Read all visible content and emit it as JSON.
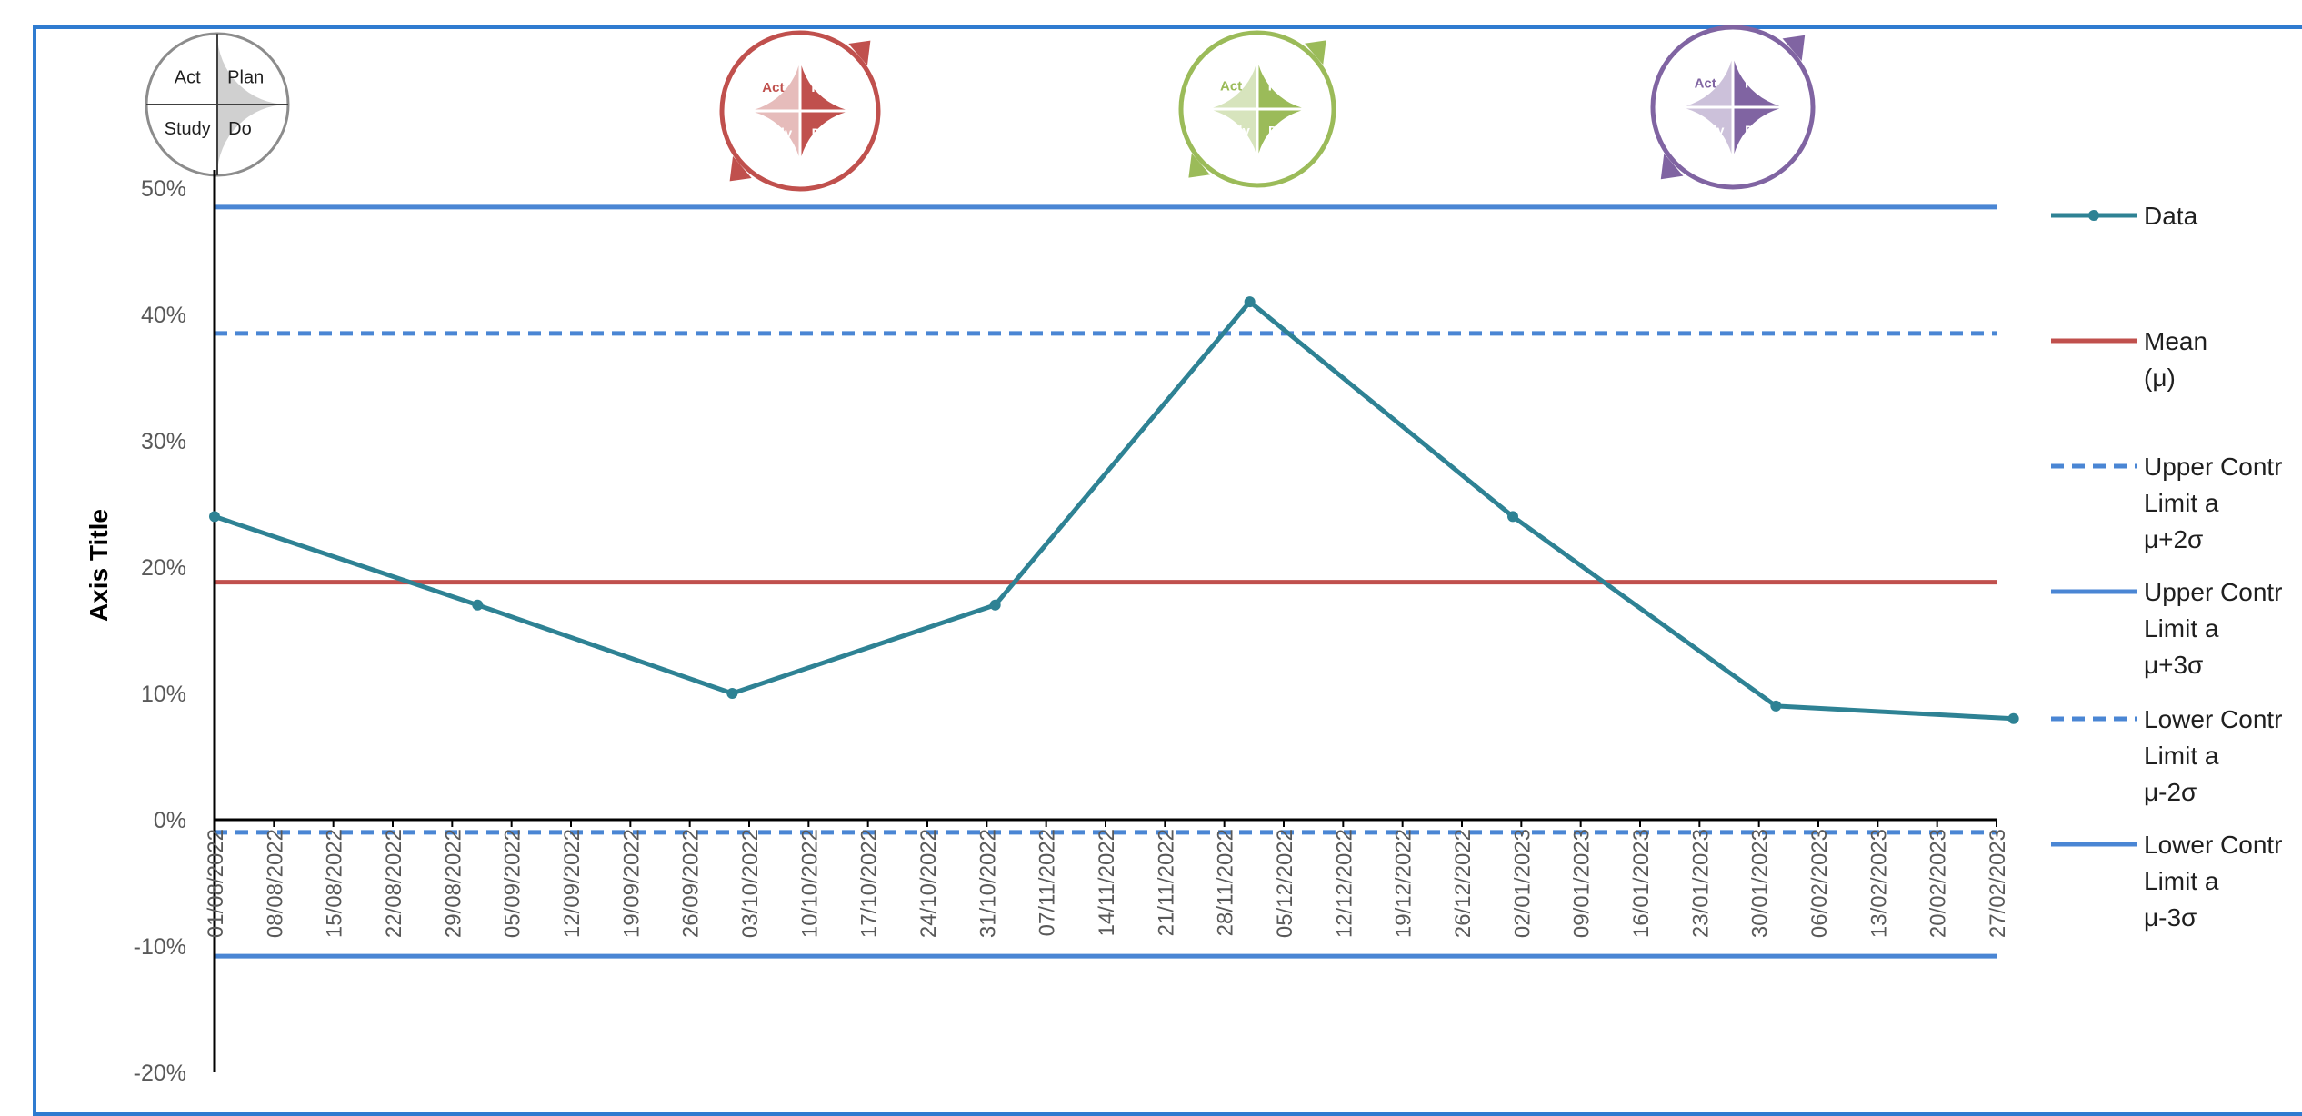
{
  "colors": {
    "data": "#2e8294",
    "mean": "#c0504d",
    "limits": "#4a86d4",
    "frame": "#2f7bd0"
  },
  "pdsa_cycles": [
    {
      "act": "Act",
      "plan": "Plan",
      "study": "Study",
      "do": "Do",
      "color_light": "#ffffff",
      "color_dark": "#d0d0d0",
      "ring": "#8c8c8c",
      "ring_style": "plain"
    },
    {
      "act": "Act",
      "plan": "Plan",
      "study": "Study",
      "do": "Do",
      "color_light": "#e6bcbb",
      "color_dark": "#c0504d",
      "ring": "#c0504d",
      "ring_style": "arrow"
    },
    {
      "act": "Act",
      "plan": "Plan",
      "study": "Study",
      "do": "Do",
      "color_light": "#d7e4bd",
      "color_dark": "#9bbb59",
      "ring": "#9bbb59",
      "ring_style": "arrow"
    },
    {
      "act": "Act",
      "plan": "Plan",
      "study": "Study",
      "do": "Do",
      "color_light": "#ccc1da",
      "color_dark": "#8064a2",
      "ring": "#8064a2",
      "ring_style": "arrow"
    }
  ],
  "chart_data": {
    "type": "line",
    "title": "",
    "xlabel": "",
    "ylabel": "Axis Title",
    "ylim": [
      -0.2,
      0.5
    ],
    "yticks": [
      {
        "value": 0.5,
        "label": "50%"
      },
      {
        "value": 0.4,
        "label": "40%"
      },
      {
        "value": 0.3,
        "label": "30%"
      },
      {
        "value": 0.2,
        "label": "20%"
      },
      {
        "value": 0.1,
        "label": "10%"
      },
      {
        "value": 0.0,
        "label": "0%"
      },
      {
        "value": -0.1,
        "label": "-10%"
      },
      {
        "value": -0.2,
        "label": "-20%"
      }
    ],
    "x_tick_labels": [
      "01/08/2022",
      "08/08/2022",
      "15/08/2022",
      "22/08/2022",
      "29/08/2022",
      "05/09/2022",
      "12/09/2022",
      "19/09/2022",
      "26/09/2022",
      "03/10/2022",
      "10/10/2022",
      "17/10/2022",
      "24/10/2022",
      "31/10/2022",
      "07/11/2022",
      "14/11/2022",
      "21/11/2022",
      "28/11/2022",
      "05/12/2022",
      "12/12/2022",
      "19/12/2022",
      "26/12/2022",
      "02/01/2023",
      "09/01/2023",
      "16/01/2023",
      "23/01/2023",
      "30/01/2023",
      "06/02/2023",
      "13/02/2023",
      "20/02/2023",
      "27/02/2023"
    ],
    "x_range": [
      "01/08/2022",
      "27/02/2023"
    ],
    "series": [
      {
        "name": "Data",
        "style": "line-markers",
        "x": [
          "01/08/2022",
          "01/09/2022",
          "01/10/2022",
          "01/11/2022",
          "01/12/2022",
          "01/01/2023",
          "01/02/2023",
          "01/03/2023"
        ],
        "y": [
          0.24,
          0.17,
          0.1,
          0.17,
          0.41,
          0.24,
          0.09,
          0.08
        ]
      },
      {
        "name": "Mean (μ)",
        "style": "solid",
        "constant": 0.188
      },
      {
        "name": "Upper Control Limit a μ+2σ",
        "style": "dashed",
        "constant": 0.385
      },
      {
        "name": "Upper Control Limit a μ+3σ",
        "style": "solid",
        "constant": 0.485
      },
      {
        "name": "Lower Control Limit a μ-2σ",
        "style": "dashed",
        "constant": -0.01
      },
      {
        "name": "Lower Control Limit a μ-3σ",
        "style": "solid",
        "constant": -0.108
      }
    ],
    "legend": {
      "placement": "right",
      "entries": [
        {
          "key": "data",
          "lines": [
            "Data"
          ]
        },
        {
          "key": "mean",
          "lines": [
            "Mean",
            "(μ)"
          ]
        },
        {
          "key": "ucl2",
          "lines": [
            "Upper Contr",
            "Limit a",
            "μ+2σ"
          ]
        },
        {
          "key": "ucl3",
          "lines": [
            "Upper Contr",
            "Limit a",
            "μ+3σ"
          ]
        },
        {
          "key": "lcl2",
          "lines": [
            "Lower Contr",
            "Limit a",
            "μ-2σ"
          ]
        },
        {
          "key": "lcl3",
          "lines": [
            "Lower Contr",
            "Limit a",
            "μ-3σ"
          ]
        }
      ]
    },
    "grid": false
  }
}
